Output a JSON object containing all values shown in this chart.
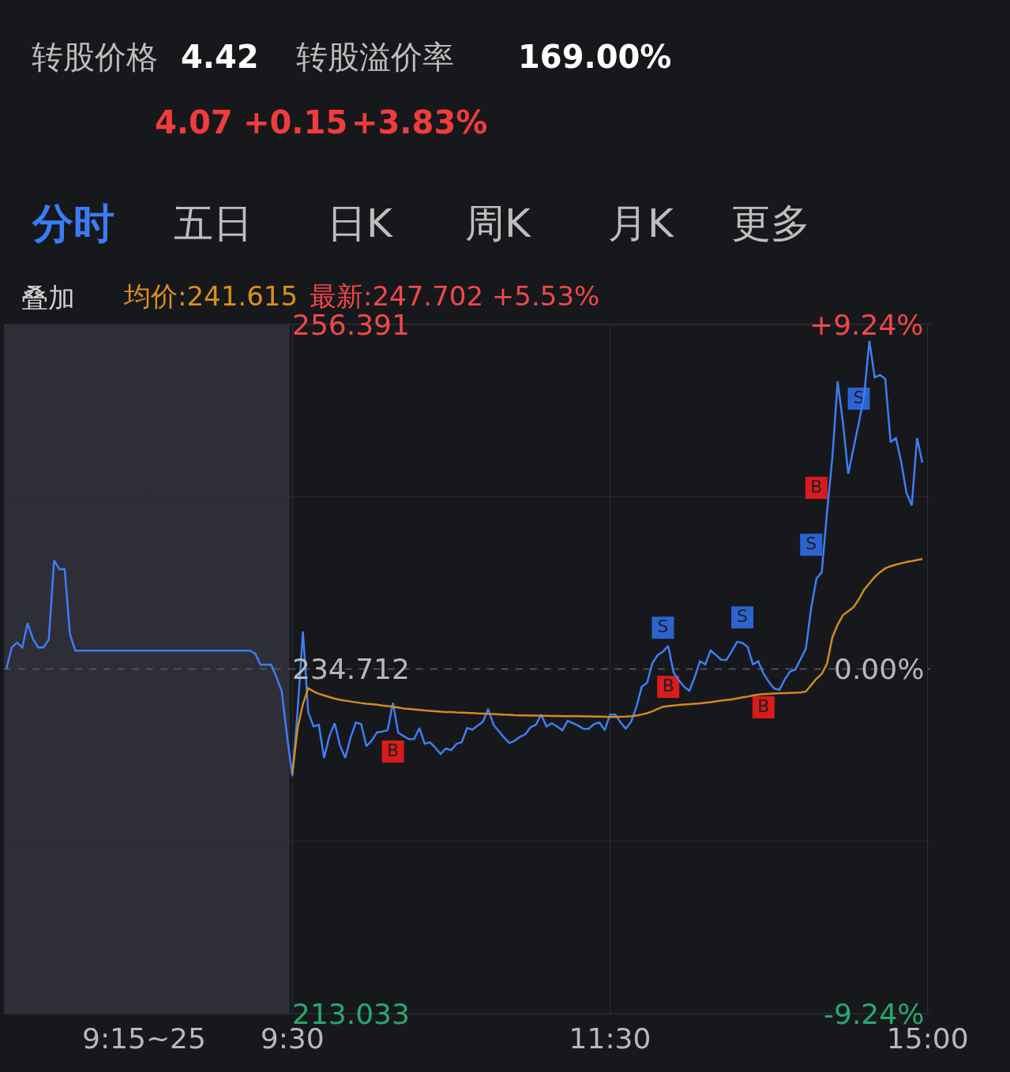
{
  "chart_data": {
    "type": "line",
    "annotations": [
      "转股价格",
      "4.42",
      "转股溢价率",
      "169.00%",
      "4.07",
      "+0.15",
      "+3.83%",
      "分时",
      "五日",
      "日K",
      "周K",
      "月K",
      "更多",
      "叠加",
      "均价:241.615",
      "最新:247.702 +5.53%"
    ],
    "categories": [
      null,
      null,
      null,
      null,
      null,
      null,
      null,
      null,
      null,
      null,
      null,
      null,
      null,
      null,
      null,
      null,
      null,
      null,
      null,
      null,
      null,
      null,
      null,
      null,
      null,
      null,
      "9:15~25",
      null,
      null,
      null,
      null,
      null,
      null,
      null,
      null,
      null,
      null,
      null,
      null,
      null,
      null,
      null,
      null,
      null,
      null,
      null,
      null,
      null,
      null,
      null,
      null,
      null,
      null,
      null,
      "9:30",
      null,
      null,
      null,
      null,
      null,
      null,
      null,
      null,
      null,
      null,
      null,
      null,
      null,
      null,
      null,
      null,
      null,
      null,
      null,
      null,
      null,
      null,
      null,
      null,
      null,
      null,
      null,
      null,
      null,
      null,
      null,
      null,
      null,
      null,
      null,
      null,
      null,
      null,
      null,
      null,
      null,
      null,
      null,
      null,
      null,
      null,
      null,
      null,
      null,
      null,
      null,
      null,
      null,
      null,
      null,
      null,
      null,
      null,
      null,
      "11:30",
      null,
      null,
      null,
      null,
      null,
      null,
      null,
      null,
      null,
      null,
      null,
      null,
      null,
      null,
      null,
      null,
      null,
      null,
      null,
      null,
      null,
      null,
      null,
      null,
      null,
      null,
      null,
      null,
      null,
      null,
      null,
      null,
      null,
      null,
      null,
      null,
      null,
      null,
      null,
      null,
      null,
      null,
      null,
      null,
      null,
      null,
      null,
      null,
      null,
      null,
      null,
      null,
      null,
      null,
      null,
      null,
      null,
      null,
      null,
      "15:00"
    ],
    "ylim": [
      213.033,
      256.391
    ],
    "yticks": [
      256.391,
      {
        "value": 245.552,
        "label": null
      },
      234.712,
      {
        "value": 223.873,
        "label": null
      },
      213.033
    ],
    "y2lim": [
      -9.24,
      9.24
    ],
    "y2ticks": [
      {
        "value": 9.24,
        "label": "+9.24%"
      },
      {
        "value": 0,
        "label": "0.00%"
      },
      {
        "value": -9.24,
        "label": "-9.24%"
      }
    ],
    "grid": true,
    "ref_lines": [
      {
        "axis": "y",
        "value": 234.712,
        "label": null,
        "color": "#5c5e66",
        "line_style": "dashed"
      }
    ],
    "series": [
      {
        "color": "#3d7df5",
        "values": [
          234.73,
          236.07,
          236.37,
          236.07,
          237.6,
          236.6,
          236.07,
          236.07,
          236.57,
          241.54,
          240.99,
          240.99,
          236.9,
          235.87,
          235.87,
          235.87,
          235.87,
          235.87,
          235.87,
          235.87,
          235.87,
          235.87,
          235.87,
          235.87,
          235.87,
          235.87,
          235.87,
          235.87,
          235.87,
          235.87,
          235.87,
          235.87,
          235.87,
          235.87,
          235.87,
          235.87,
          235.87,
          235.87,
          235.87,
          235.87,
          235.87,
          235.87,
          235.87,
          235.87,
          235.87,
          235.87,
          235.87,
          235.67,
          234.98,
          234.98,
          234.98,
          234.2,
          233.3,
          230.5,
          227.97,
          232.1,
          237.07,
          232.0,
          231.1,
          231.2,
          229.12,
          230.5,
          231.3,
          229.9,
          229.12,
          230.4,
          231.35,
          231.25,
          229.86,
          230.21,
          230.73,
          230.78,
          230.86,
          232.59,
          230.7,
          230.5,
          230.3,
          230.3,
          231.0,
          230.01,
          230.1,
          229.76,
          229.37,
          229.71,
          229.61,
          230.0,
          230.11,
          231.0,
          230.9,
          231.15,
          231.4,
          232.2,
          231.2,
          230.8,
          230.4,
          230.05,
          230.2,
          230.45,
          230.6,
          231.05,
          231.2,
          231.85,
          231.1,
          231.3,
          231.1,
          230.86,
          231.45,
          231.3,
          231.15,
          230.95,
          230.95,
          231.25,
          231.35,
          230.86,
          231.85,
          231.85,
          231.35,
          230.96,
          231.4,
          232.35,
          233.59,
          233.84,
          235.08,
          235.58,
          235.8,
          236.17,
          234.5,
          234.0,
          233.6,
          233.34,
          234.2,
          235.2,
          235.0,
          235.87,
          235.6,
          235.3,
          235.28,
          235.82,
          236.42,
          236.35,
          236.1,
          235.0,
          235.2,
          234.43,
          233.9,
          233.49,
          233.4,
          234.05,
          234.55,
          234.68,
          235.33,
          236.0,
          238.56,
          240.4,
          240.8,
          244.6,
          248.0,
          252.81,
          250.23,
          247.0,
          248.6,
          250.2,
          251.9,
          255.35,
          253.06,
          253.21,
          252.96,
          248.99,
          249.24,
          247.75,
          245.8,
          245.01,
          249.24,
          247.7,
          null
        ]
      },
      {
        "color": "#d28a1e",
        "values": [
          null,
          null,
          null,
          null,
          null,
          null,
          null,
          null,
          null,
          null,
          null,
          null,
          null,
          null,
          null,
          null,
          null,
          null,
          null,
          null,
          null,
          null,
          null,
          null,
          null,
          null,
          null,
          null,
          null,
          null,
          null,
          null,
          null,
          null,
          null,
          null,
          null,
          null,
          null,
          null,
          null,
          null,
          null,
          null,
          null,
          null,
          null,
          null,
          null,
          null,
          null,
          null,
          null,
          null,
          228.12,
          231.0,
          232.5,
          233.5,
          233.3,
          233.15,
          233.05,
          232.95,
          232.85,
          232.78,
          232.72,
          232.67,
          232.62,
          232.57,
          232.53,
          232.5,
          232.46,
          232.42,
          232.38,
          232.34,
          232.29,
          232.23,
          232.2,
          232.17,
          232.14,
          232.11,
          232.08,
          232.05,
          232.03,
          232.01,
          232.0,
          231.98,
          231.97,
          231.95,
          231.94,
          231.92,
          231.91,
          231.89,
          231.88,
          231.86,
          231.84,
          231.83,
          231.81,
          231.8,
          231.79,
          231.78,
          231.78,
          231.77,
          231.77,
          231.76,
          231.76,
          231.75,
          231.75,
          231.74,
          231.74,
          231.73,
          231.73,
          231.72,
          231.72,
          231.71,
          231.7,
          231.7,
          231.71,
          231.72,
          231.74,
          231.78,
          231.85,
          231.93,
          232.05,
          232.2,
          232.34,
          232.38,
          232.42,
          232.45,
          232.48,
          232.5,
          232.53,
          232.55,
          232.59,
          232.63,
          232.68,
          232.72,
          232.76,
          232.8,
          232.86,
          232.92,
          232.98,
          233.05,
          233.1,
          233.13,
          233.15,
          233.17,
          233.19,
          233.2,
          233.21,
          233.22,
          233.23,
          233.3,
          233.7,
          234.1,
          234.4,
          235.05,
          236.7,
          237.5,
          238.1,
          238.35,
          238.6,
          239.1,
          239.7,
          240.1,
          240.5,
          240.8,
          241.05,
          241.18,
          241.28,
          241.36,
          241.44,
          241.5,
          241.57,
          241.64,
          null
        ]
      },
      {
        "type": "scatter",
        "color": "#f01c1c",
        "marker": "square",
        "values": [
          null,
          null,
          null,
          null,
          null,
          null,
          null,
          null,
          null,
          null,
          null,
          null,
          null,
          null,
          null,
          null,
          null,
          null,
          null,
          null,
          null,
          null,
          null,
          null,
          null,
          null,
          null,
          null,
          null,
          null,
          null,
          null,
          null,
          null,
          null,
          null,
          null,
          null,
          null,
          null,
          null,
          null,
          null,
          null,
          null,
          null,
          null,
          null,
          null,
          null,
          null,
          null,
          null,
          null,
          null,
          null,
          null,
          null,
          null,
          null,
          null,
          null,
          null,
          null,
          null,
          null,
          null,
          null,
          null,
          null,
          null,
          null,
          null,
          229.52,
          null,
          null,
          null,
          null,
          null,
          null,
          null,
          null,
          null,
          null,
          null,
          null,
          null,
          null,
          null,
          null,
          null,
          null,
          null,
          null,
          null,
          null,
          null,
          null,
          null,
          null,
          null,
          null,
          null,
          null,
          null,
          null,
          null,
          null,
          null,
          null,
          null,
          null,
          null,
          null,
          null,
          null,
          null,
          null,
          null,
          null,
          null,
          null,
          null,
          null,
          null,
          233.59,
          null,
          null,
          null,
          null,
          null,
          null,
          null,
          null,
          null,
          null,
          null,
          null,
          null,
          null,
          null,
          null,
          null,
          232.3,
          null,
          null,
          null,
          null,
          null,
          null,
          null,
          null,
          null,
          246.11,
          null,
          null,
          null,
          null,
          null,
          null,
          null,
          null,
          null,
          null,
          null,
          null,
          null,
          null,
          null,
          null,
          null,
          null,
          null,
          null,
          null
        ],
        "value_labels": [
          null,
          null,
          null,
          null,
          null,
          null,
          null,
          null,
          null,
          null,
          null,
          null,
          null,
          null,
          null,
          null,
          null,
          null,
          null,
          null,
          null,
          null,
          null,
          null,
          null,
          null,
          null,
          null,
          null,
          null,
          null,
          null,
          null,
          null,
          null,
          null,
          null,
          null,
          null,
          null,
          null,
          null,
          null,
          null,
          null,
          null,
          null,
          null,
          null,
          null,
          null,
          null,
          null,
          null,
          null,
          null,
          null,
          null,
          null,
          null,
          null,
          null,
          null,
          null,
          null,
          null,
          null,
          null,
          null,
          null,
          null,
          null,
          null,
          "B",
          null,
          null,
          null,
          null,
          null,
          null,
          null,
          null,
          null,
          null,
          null,
          null,
          null,
          null,
          null,
          null,
          null,
          null,
          null,
          null,
          null,
          null,
          null,
          null,
          null,
          null,
          null,
          null,
          null,
          null,
          null,
          null,
          null,
          null,
          null,
          null,
          null,
          null,
          null,
          null,
          null,
          null,
          null,
          null,
          null,
          null,
          null,
          null,
          null,
          null,
          null,
          "B",
          null,
          null,
          null,
          null,
          null,
          null,
          null,
          null,
          null,
          null,
          null,
          null,
          null,
          null,
          null,
          null,
          null,
          "B",
          null,
          null,
          null,
          null,
          null,
          null,
          null,
          null,
          null,
          "B",
          null,
          null,
          null,
          null,
          null,
          null,
          null,
          null,
          null,
          null,
          null,
          null,
          null,
          null,
          null,
          null,
          null,
          null,
          null,
          null,
          null
        ]
      },
      {
        "type": "scatter",
        "color": "#2f6ce5",
        "marker": "square",
        "values": [
          null,
          null,
          null,
          null,
          null,
          null,
          null,
          null,
          null,
          null,
          null,
          null,
          null,
          null,
          null,
          null,
          null,
          null,
          null,
          null,
          null,
          null,
          null,
          null,
          null,
          null,
          null,
          null,
          null,
          null,
          null,
          null,
          null,
          null,
          null,
          null,
          null,
          null,
          null,
          null,
          null,
          null,
          null,
          null,
          null,
          null,
          null,
          null,
          null,
          null,
          null,
          null,
          null,
          null,
          null,
          null,
          null,
          null,
          null,
          null,
          null,
          null,
          null,
          null,
          null,
          null,
          null,
          null,
          null,
          null,
          null,
          null,
          null,
          null,
          null,
          null,
          null,
          null,
          null,
          null,
          null,
          null,
          null,
          null,
          null,
          null,
          null,
          null,
          null,
          null,
          null,
          null,
          null,
          null,
          null,
          null,
          null,
          null,
          null,
          null,
          null,
          null,
          null,
          null,
          null,
          null,
          null,
          null,
          null,
          null,
          null,
          null,
          null,
          null,
          null,
          null,
          null,
          null,
          null,
          null,
          null,
          null,
          null,
          null,
          237.31,
          null,
          null,
          null,
          null,
          null,
          null,
          null,
          null,
          null,
          null,
          null,
          null,
          null,
          null,
          237.96,
          null,
          null,
          null,
          null,
          null,
          null,
          null,
          null,
          null,
          null,
          null,
          null,
          242.53,
          null,
          null,
          null,
          null,
          null,
          null,
          null,
          null,
          251.72,
          null,
          null,
          null,
          null,
          null,
          null,
          null,
          null,
          null,
          null,
          null,
          null,
          null
        ],
        "value_labels": [
          null,
          null,
          null,
          null,
          null,
          null,
          null,
          null,
          null,
          null,
          null,
          null,
          null,
          null,
          null,
          null,
          null,
          null,
          null,
          null,
          null,
          null,
          null,
          null,
          null,
          null,
          null,
          null,
          null,
          null,
          null,
          null,
          null,
          null,
          null,
          null,
          null,
          null,
          null,
          null,
          null,
          null,
          null,
          null,
          null,
          null,
          null,
          null,
          null,
          null,
          null,
          null,
          null,
          null,
          null,
          null,
          null,
          null,
          null,
          null,
          null,
          null,
          null,
          null,
          null,
          null,
          null,
          null,
          null,
          null,
          null,
          null,
          null,
          null,
          null,
          null,
          null,
          null,
          null,
          null,
          null,
          null,
          null,
          null,
          null,
          null,
          null,
          null,
          null,
          null,
          null,
          null,
          null,
          null,
          null,
          null,
          null,
          null,
          null,
          null,
          null,
          null,
          null,
          null,
          null,
          null,
          null,
          null,
          null,
          null,
          null,
          null,
          null,
          null,
          null,
          null,
          null,
          null,
          null,
          null,
          null,
          null,
          null,
          null,
          "S",
          null,
          null,
          null,
          null,
          null,
          null,
          null,
          null,
          null,
          null,
          null,
          null,
          null,
          null,
          "S",
          null,
          null,
          null,
          null,
          null,
          null,
          null,
          null,
          null,
          null,
          null,
          null,
          "S",
          null,
          null,
          null,
          null,
          null,
          null,
          null,
          null,
          "S",
          null,
          null,
          null,
          null,
          null,
          null,
          null,
          null,
          null,
          null,
          null,
          null,
          null
        ]
      }
    ]
  }
}
